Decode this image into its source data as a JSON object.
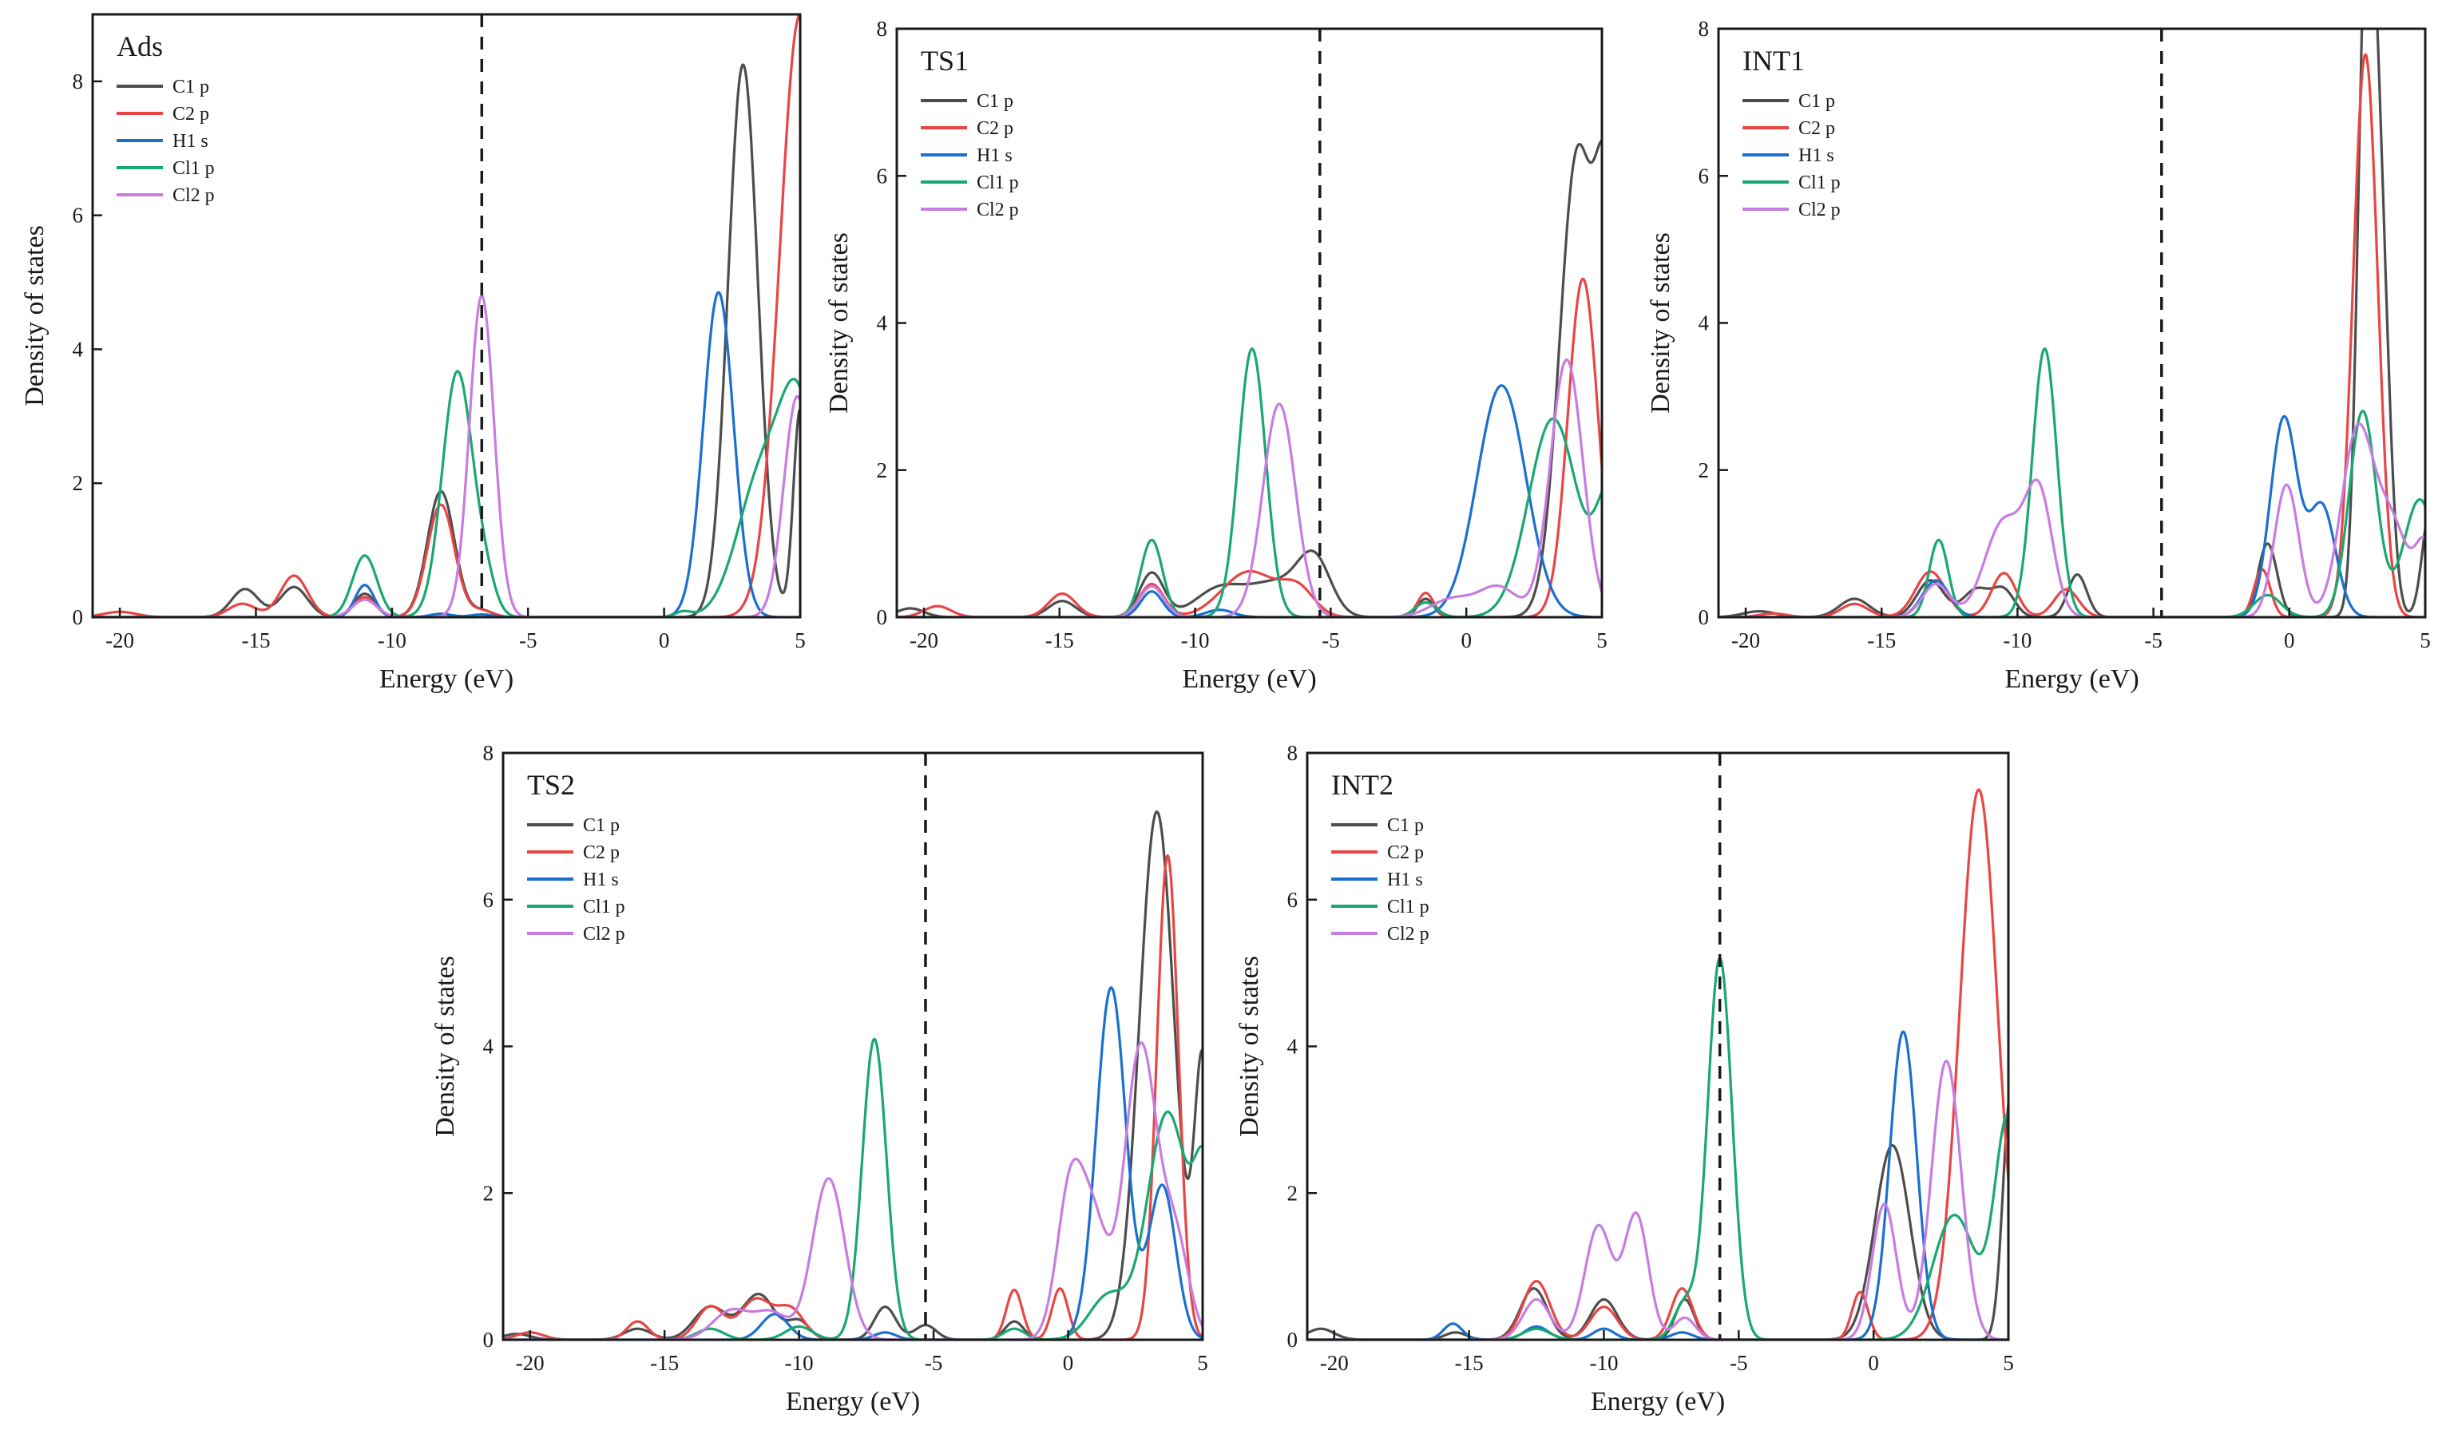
{
  "chart_data": [
    {
      "type": "line",
      "panel_label": "Ads",
      "xlabel": "Energy (eV)",
      "ylabel": "Density of states",
      "xlim": [
        -21,
        5
      ],
      "ylim": [
        0,
        9
      ],
      "xticks": [
        -20,
        -15,
        -10,
        -5,
        0,
        5
      ],
      "yticks": [
        0,
        2,
        4,
        6,
        8
      ],
      "fermi_level": -6.7,
      "legend": [
        "C1 p",
        "C2 p",
        "H1 s",
        "Cl1 p",
        "Cl2 p"
      ],
      "series": [
        {
          "name": "C1 p",
          "color": "#4d4d4d",
          "peaks": [
            [
              -15.4,
              0.42,
              0.5
            ],
            [
              -13.6,
              0.45,
              0.5
            ],
            [
              -11.0,
              0.35,
              0.4
            ],
            [
              -8.2,
              1.88,
              0.5
            ],
            [
              -6.7,
              0.1,
              0.4
            ],
            [
              2.9,
              8.25,
              0.55
            ],
            [
              5.0,
              3.1,
              0.25
            ]
          ]
        },
        {
          "name": "C2 p",
          "color": "#e84545",
          "peaks": [
            [
              -20.0,
              0.08,
              0.6
            ],
            [
              -15.5,
              0.2,
              0.5
            ],
            [
              -13.6,
              0.62,
              0.5
            ],
            [
              -11.0,
              0.3,
              0.4
            ],
            [
              -8.2,
              1.68,
              0.5
            ],
            [
              -6.7,
              0.1,
              0.4
            ],
            [
              5.0,
              9.0,
              0.75
            ]
          ]
        },
        {
          "name": "H1 s",
          "color": "#1a6fd0",
          "peaks": [
            [
              -11.0,
              0.48,
              0.35
            ],
            [
              -8.2,
              0.05,
              0.4
            ],
            [
              -6.7,
              0.04,
              0.4
            ],
            [
              2.0,
              4.85,
              0.55
            ]
          ]
        },
        {
          "name": "Cl1 p",
          "color": "#18a870",
          "peaks": [
            [
              -11.0,
              0.92,
              0.45
            ],
            [
              -7.6,
              3.65,
              0.55
            ],
            [
              -6.6,
              0.5,
              0.4
            ],
            [
              0.7,
              0.08,
              0.3
            ],
            [
              3.6,
              2.1,
              0.9
            ],
            [
              5.0,
              2.8,
              0.7
            ]
          ]
        },
        {
          "name": "Cl2 p",
          "color": "#c77de0",
          "peaks": [
            [
              -11.0,
              0.26,
              0.45
            ],
            [
              -6.7,
              4.8,
              0.45
            ],
            [
              4.9,
              3.3,
              0.5
            ]
          ]
        }
      ]
    },
    {
      "type": "line",
      "panel_label": "TS1",
      "xlabel": "Energy (eV)",
      "ylabel": "Density of states",
      "xlim": [
        -21,
        5
      ],
      "ylim": [
        0,
        8
      ],
      "xticks": [
        -20,
        -15,
        -10,
        -5,
        0,
        5
      ],
      "yticks": [
        0,
        2,
        4,
        6,
        8
      ],
      "fermi_level": -5.4,
      "legend": [
        "C1 p",
        "C2 p",
        "H1 s",
        "Cl1 p",
        "Cl2 p"
      ],
      "series": [
        {
          "name": "C1 p",
          "color": "#4d4d4d",
          "peaks": [
            [
              -20.5,
              0.12,
              0.5
            ],
            [
              -14.9,
              0.22,
              0.5
            ],
            [
              -11.6,
              0.6,
              0.45
            ],
            [
              -9.1,
              0.38,
              0.9
            ],
            [
              -7.0,
              0.45,
              1.0
            ],
            [
              -5.6,
              0.72,
              0.6
            ],
            [
              -1.5,
              0.25,
              0.3
            ],
            [
              4.1,
              6.3,
              0.65
            ],
            [
              5.2,
              4.6,
              0.4
            ]
          ]
        },
        {
          "name": "C2 p",
          "color": "#e84545",
          "peaks": [
            [
              -19.5,
              0.15,
              0.5
            ],
            [
              -14.9,
              0.32,
              0.5
            ],
            [
              -11.6,
              0.45,
              0.45
            ],
            [
              -8.0,
              0.62,
              1.0
            ],
            [
              -6.2,
              0.35,
              0.6
            ],
            [
              -1.5,
              0.33,
              0.3
            ],
            [
              4.3,
              4.6,
              0.55
            ]
          ]
        },
        {
          "name": "H1 s",
          "color": "#1a6fd0",
          "peaks": [
            [
              -11.6,
              0.35,
              0.4
            ],
            [
              -9.1,
              0.1,
              0.5
            ],
            [
              1.3,
              3.15,
              0.9
            ]
          ]
        },
        {
          "name": "Cl1 p",
          "color": "#18a870",
          "peaks": [
            [
              -11.6,
              1.05,
              0.4
            ],
            [
              -7.9,
              3.65,
              0.5
            ],
            [
              -1.5,
              0.2,
              0.4
            ],
            [
              3.2,
              2.7,
              0.9
            ],
            [
              5.3,
              1.6,
              0.5
            ]
          ]
        },
        {
          "name": "Cl2 p",
          "color": "#c77de0",
          "peaks": [
            [
              -11.6,
              0.42,
              0.45
            ],
            [
              -6.9,
              2.9,
              0.6
            ],
            [
              -0.5,
              0.25,
              0.8
            ],
            [
              1.2,
              0.4,
              0.7
            ],
            [
              3.7,
              3.5,
              0.6
            ]
          ]
        }
      ]
    },
    {
      "type": "line",
      "panel_label": "INT1",
      "xlabel": "Energy (eV)",
      "ylabel": "Density of states",
      "xlim": [
        -21,
        5
      ],
      "ylim": [
        0,
        8
      ],
      "xticks": [
        -20,
        -15,
        -10,
        -5,
        0,
        5
      ],
      "yticks": [
        0,
        2,
        4,
        6,
        8
      ],
      "fermi_level": -4.7,
      "legend": [
        "C1 p",
        "C2 p",
        "H1 s",
        "Cl1 p",
        "Cl2 p"
      ],
      "series": [
        {
          "name": "C1 p",
          "color": "#4d4d4d",
          "peaks": [
            [
              -19.5,
              0.08,
              0.6
            ],
            [
              -16.0,
              0.25,
              0.55
            ],
            [
              -13.2,
              0.5,
              0.5
            ],
            [
              -11.5,
              0.38,
              0.5
            ],
            [
              -10.5,
              0.35,
              0.4
            ],
            [
              -7.8,
              0.58,
              0.35
            ],
            [
              -0.8,
              1.0,
              0.35
            ],
            [
              2.8,
              7.6,
              0.3
            ],
            [
              3.3,
              5.5,
              0.35
            ],
            [
              5.2,
              1.5,
              0.3
            ]
          ]
        },
        {
          "name": "C2 p",
          "color": "#e84545",
          "peaks": [
            [
              -19.0,
              0.05,
              0.5
            ],
            [
              -16.0,
              0.18,
              0.5
            ],
            [
              -13.2,
              0.62,
              0.55
            ],
            [
              -10.5,
              0.6,
              0.45
            ],
            [
              -8.2,
              0.38,
              0.45
            ],
            [
              -1.0,
              0.65,
              0.3
            ],
            [
              2.8,
              7.65,
              0.45
            ]
          ]
        },
        {
          "name": "H1 s",
          "color": "#1a6fd0",
          "peaks": [
            [
              -13.0,
              0.5,
              0.5
            ],
            [
              -0.2,
              2.7,
              0.5
            ],
            [
              1.2,
              1.5,
              0.5
            ]
          ]
        },
        {
          "name": "Cl1 p",
          "color": "#18a870",
          "peaks": [
            [
              -12.9,
              1.05,
              0.35
            ],
            [
              -9.0,
              3.65,
              0.45
            ],
            [
              -0.8,
              0.3,
              0.5
            ],
            [
              2.7,
              2.8,
              0.5
            ],
            [
              4.8,
              1.6,
              0.6
            ]
          ]
        },
        {
          "name": "Cl2 p",
          "color": "#c77de0",
          "peaks": [
            [
              -13.0,
              0.45,
              0.5
            ],
            [
              -10.5,
              1.3,
              0.7
            ],
            [
              -9.2,
              1.6,
              0.5
            ],
            [
              -0.1,
              1.8,
              0.45
            ],
            [
              2.5,
              2.5,
              0.6
            ],
            [
              3.8,
              1.2,
              0.6
            ],
            [
              5.0,
              0.9,
              0.35
            ]
          ]
        }
      ]
    },
    {
      "type": "line",
      "panel_label": "TS2",
      "xlabel": "Energy (eV)",
      "ylabel": "Density of states",
      "xlim": [
        -21,
        5
      ],
      "ylim": [
        0,
        8
      ],
      "xticks": [
        -20,
        -15,
        -10,
        -5,
        0,
        5
      ],
      "yticks": [
        0,
        2,
        4,
        6,
        8
      ],
      "fermi_level": -5.3,
      "legend": [
        "C1 p",
        "C2 p",
        "H1 s",
        "Cl1 p",
        "Cl2 p"
      ],
      "series": [
        {
          "name": "C1 p",
          "color": "#4d4d4d",
          "peaks": [
            [
              -20.5,
              0.08,
              0.5
            ],
            [
              -16.0,
              0.15,
              0.5
            ],
            [
              -13.3,
              0.45,
              0.6
            ],
            [
              -11.5,
              0.62,
              0.6
            ],
            [
              -10.0,
              0.25,
              0.4
            ],
            [
              -6.8,
              0.45,
              0.4
            ],
            [
              -5.3,
              0.2,
              0.4
            ],
            [
              -2.0,
              0.25,
              0.35
            ],
            [
              3.3,
              7.2,
              0.65
            ],
            [
              5.0,
              3.7,
              0.3
            ]
          ]
        },
        {
          "name": "C2 p",
          "color": "#e84545",
          "peaks": [
            [
              -20.0,
              0.1,
              0.5
            ],
            [
              -16.0,
              0.25,
              0.4
            ],
            [
              -13.3,
              0.45,
              0.5
            ],
            [
              -11.6,
              0.55,
              0.6
            ],
            [
              -10.3,
              0.4,
              0.5
            ],
            [
              -2.0,
              0.68,
              0.3
            ],
            [
              -0.3,
              0.7,
              0.3
            ],
            [
              3.7,
              6.6,
              0.4
            ]
          ]
        },
        {
          "name": "H1 s",
          "color": "#1a6fd0",
          "peaks": [
            [
              -10.9,
              0.35,
              0.5
            ],
            [
              -6.8,
              0.1,
              0.4
            ],
            [
              1.6,
              4.8,
              0.55
            ],
            [
              3.5,
              2.1,
              0.5
            ]
          ]
        },
        {
          "name": "Cl1 p",
          "color": "#18a870",
          "peaks": [
            [
              -13.3,
              0.15,
              0.5
            ],
            [
              -10.0,
              0.18,
              0.5
            ],
            [
              -7.2,
              4.1,
              0.45
            ],
            [
              -2.0,
              0.15,
              0.4
            ],
            [
              1.5,
              0.6,
              0.7
            ],
            [
              3.7,
              3.1,
              0.75
            ],
            [
              5.1,
              2.0,
              0.4
            ]
          ]
        },
        {
          "name": "Cl2 p",
          "color": "#c77de0",
          "peaks": [
            [
              -12.5,
              0.4,
              0.7
            ],
            [
              -11.0,
              0.35,
              0.6
            ],
            [
              -8.9,
              2.2,
              0.6
            ],
            [
              0.1,
              2.1,
              0.5
            ],
            [
              1.0,
              1.4,
              0.5
            ],
            [
              2.7,
              4.0,
              0.6
            ],
            [
              4.0,
              1.3,
              0.5
            ]
          ]
        }
      ]
    },
    {
      "type": "line",
      "panel_label": "INT2",
      "xlabel": "Energy (eV)",
      "ylabel": "Density of states",
      "xlim": [
        -21,
        5
      ],
      "ylim": [
        0,
        8
      ],
      "xticks": [
        -20,
        -15,
        -10,
        -5,
        0,
        5
      ],
      "yticks": [
        0,
        2,
        4,
        6,
        8
      ],
      "fermi_level": -5.7,
      "legend": [
        "C1 p",
        "C2 p",
        "H1 s",
        "Cl1 p",
        "Cl2 p"
      ],
      "series": [
        {
          "name": "C1 p",
          "color": "#4d4d4d",
          "peaks": [
            [
              -20.5,
              0.15,
              0.5
            ],
            [
              -15.5,
              0.1,
              0.4
            ],
            [
              -12.6,
              0.7,
              0.5
            ],
            [
              -10.0,
              0.55,
              0.5
            ],
            [
              -7.0,
              0.55,
              0.35
            ],
            [
              0.7,
              2.65,
              0.65
            ],
            [
              5.1,
              3.4,
              0.3
            ]
          ]
        },
        {
          "name": "C2 p",
          "color": "#e84545",
          "peaks": [
            [
              -12.5,
              0.8,
              0.5
            ],
            [
              -10.0,
              0.45,
              0.5
            ],
            [
              -7.1,
              0.7,
              0.4
            ],
            [
              -0.5,
              0.65,
              0.3
            ],
            [
              3.9,
              7.5,
              0.7
            ]
          ]
        },
        {
          "name": "H1 s",
          "color": "#1a6fd0",
          "peaks": [
            [
              -15.6,
              0.22,
              0.35
            ],
            [
              -12.5,
              0.18,
              0.45
            ],
            [
              -10.0,
              0.15,
              0.4
            ],
            [
              -7.1,
              0.1,
              0.4
            ],
            [
              1.1,
              4.2,
              0.5
            ]
          ]
        },
        {
          "name": "Cl1 p",
          "color": "#18a870",
          "peaks": [
            [
              -12.5,
              0.15,
              0.5
            ],
            [
              -7.0,
              0.5,
              0.4
            ],
            [
              -5.7,
              5.2,
              0.45
            ],
            [
              3.0,
              1.7,
              0.8
            ],
            [
              5.0,
              3.0,
              0.5
            ]
          ]
        },
        {
          "name": "Cl2 p",
          "color": "#c77de0",
          "peaks": [
            [
              -12.5,
              0.55,
              0.5
            ],
            [
              -10.2,
              1.55,
              0.5
            ],
            [
              -8.8,
              1.7,
              0.45
            ],
            [
              -7.0,
              0.3,
              0.4
            ],
            [
              0.4,
              1.85,
              0.45
            ],
            [
              2.7,
              3.8,
              0.55
            ]
          ]
        }
      ]
    }
  ]
}
